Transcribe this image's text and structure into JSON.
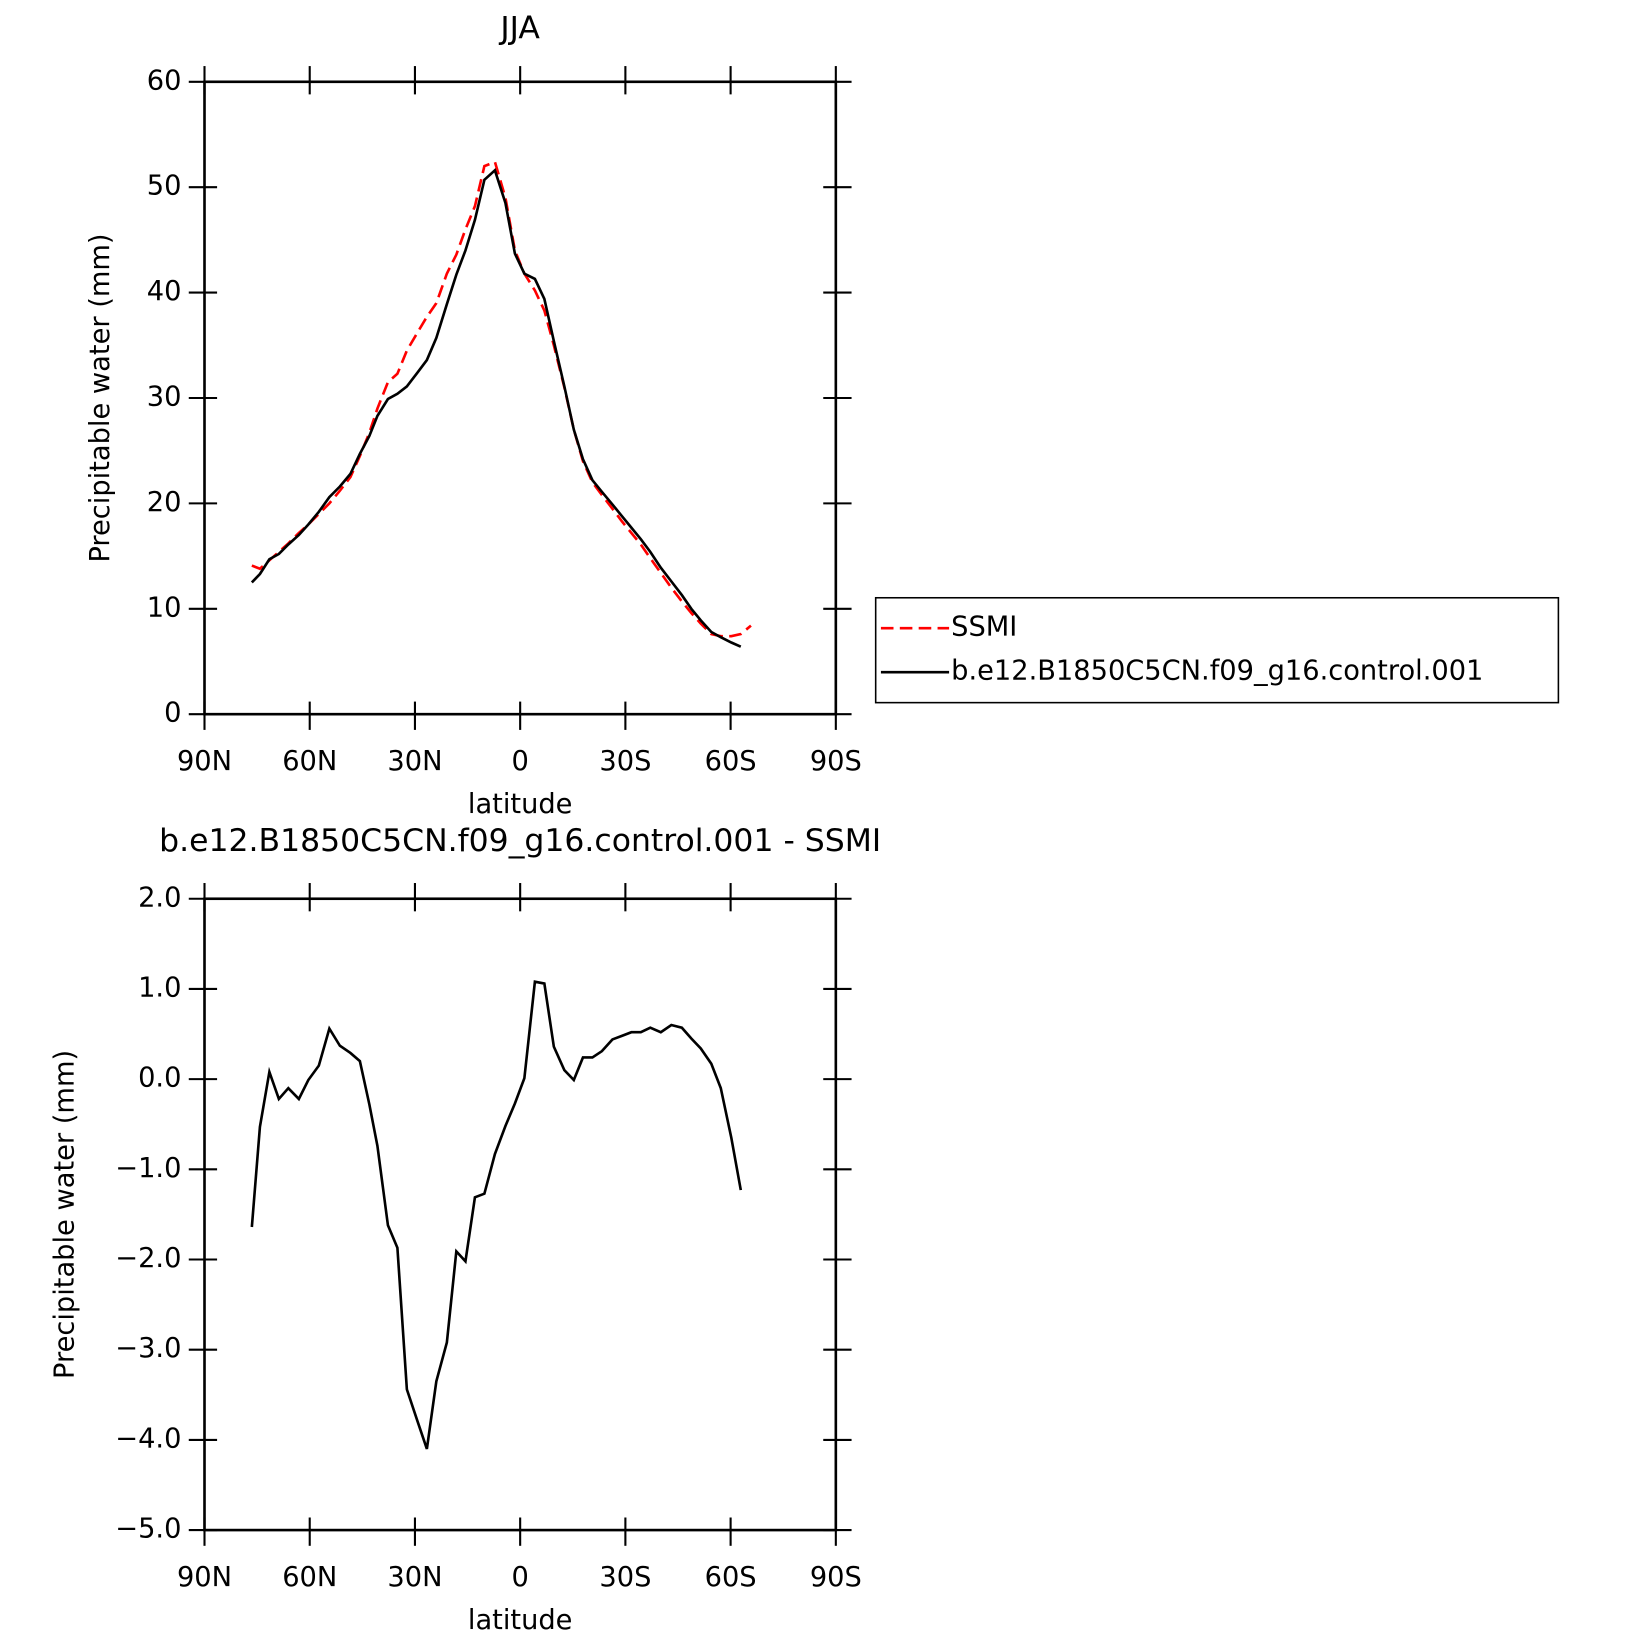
{
  "chart_data": [
    {
      "type": "line",
      "title": "JJA",
      "xlabel": "latitude",
      "ylabel": "Precipitable water (mm)",
      "x": [
        76.5,
        74.2,
        71.5,
        68.8,
        66.1,
        63.1,
        60.4,
        57.4,
        54.4,
        51.4,
        48.4,
        45.7,
        43.0,
        40.7,
        37.7,
        35.0,
        32.3,
        29.3,
        26.6,
        23.9,
        20.9,
        18.2,
        15.6,
        12.9,
        10.2,
        7.2,
        4.2,
        1.5,
        -1.2,
        -4.2,
        -6.9,
        -9.6,
        -12.6,
        -15.3,
        -17.9,
        -20.6,
        -23.3,
        -26.3,
        -29.0,
        -31.7,
        -34.4,
        -37.1,
        -40.1,
        -43.1,
        -46.1,
        -48.8,
        -51.5,
        -54.5,
        -57.2,
        -60.2,
        -62.9,
        -65.8
      ],
      "xlim": [
        90,
        -90
      ],
      "xticks": [
        {
          "value": 90,
          "label": "90N"
        },
        {
          "value": 60,
          "label": "60N"
        },
        {
          "value": 30,
          "label": "30N"
        },
        0,
        {
          "value": -30,
          "label": "30S"
        },
        {
          "value": -60,
          "label": "60S"
        },
        {
          "value": -90,
          "label": "90S"
        }
      ],
      "ylim": [
        0,
        60
      ],
      "yticks": [
        0,
        10,
        20,
        30,
        40,
        50,
        60
      ],
      "legend": "right",
      "series": [
        {
          "name": "SSMI",
          "color": "#ff0000",
          "dashed": true,
          "values": [
            14.1,
            13.8,
            14.6,
            15.4,
            16.2,
            17.2,
            18.0,
            19.0,
            20.0,
            21.2,
            22.5,
            24.5,
            26.7,
            29.0,
            31.5,
            32.3,
            34.5,
            36.2,
            37.7,
            39.0,
            41.8,
            43.6,
            46.0,
            48.2,
            52.0,
            52.4,
            49.0,
            44.0,
            41.8,
            40.2,
            38.3,
            35.0,
            31.0,
            27.0,
            24.0,
            22.0,
            20.8,
            19.5,
            18.3,
            17.2,
            16.1,
            14.8,
            13.4,
            12.0,
            10.7,
            9.6,
            8.6,
            7.6,
            7.4,
            7.4,
            7.6,
            8.4
          ]
        },
        {
          "name": "b.e12.B1850C5CN.f09_g16.control.001",
          "color": "#000000",
          "dashed": false,
          "values": [
            12.5,
            13.3,
            14.7,
            15.2,
            16.1,
            17.0,
            18.0,
            19.2,
            20.6,
            21.6,
            22.8,
            24.7,
            26.4,
            28.3,
            29.9,
            30.4,
            31.1,
            32.4,
            33.6,
            35.7,
            38.9,
            41.7,
            44.0,
            46.9,
            50.7,
            51.6,
            48.5,
            43.7,
            41.8,
            41.3,
            39.4,
            35.4,
            31.1,
            27.0,
            24.2,
            22.2,
            21.1,
            19.9,
            18.8,
            17.7,
            16.6,
            15.4,
            13.9,
            12.6,
            11.3,
            10.0,
            8.9,
            7.8,
            7.3,
            6.8,
            6.4,
            null
          ]
        }
      ]
    },
    {
      "type": "line",
      "title": "b.e12.B1850C5CN.f09_g16.control.001 - SSMI",
      "xlabel": "latitude",
      "ylabel": "Precipitable water (mm)",
      "x": [
        76.5,
        74.2,
        71.5,
        68.8,
        66.1,
        63.1,
        60.4,
        57.4,
        54.4,
        51.4,
        48.4,
        45.7,
        43.0,
        40.7,
        37.7,
        35.0,
        32.3,
        29.3,
        26.6,
        23.9,
        20.9,
        18.2,
        15.6,
        12.9,
        10.2,
        7.2,
        4.2,
        1.5,
        -1.2,
        -4.2,
        -6.9,
        -9.6,
        -12.6,
        -15.3,
        -17.9,
        -20.6,
        -23.3,
        -26.3,
        -29.0,
        -31.7,
        -34.4,
        -37.1,
        -40.1,
        -43.1,
        -46.1,
        -48.8,
        -51.5,
        -54.5,
        -57.2,
        -60.2,
        -62.9
      ],
      "xlim": [
        90,
        -90
      ],
      "xticks": [
        {
          "value": 90,
          "label": "90N"
        },
        {
          "value": 60,
          "label": "60N"
        },
        {
          "value": 30,
          "label": "30N"
        },
        0,
        {
          "value": -30,
          "label": "30S"
        },
        {
          "value": -60,
          "label": "60S"
        },
        {
          "value": -90,
          "label": "90S"
        }
      ],
      "ylim": [
        -5,
        2
      ],
      "yticks": [
        {
          "value": -5,
          "label": "−5.0"
        },
        {
          "value": -4,
          "label": "−4.0"
        },
        {
          "value": -3,
          "label": "−3.0"
        },
        {
          "value": -2,
          "label": "−2.0"
        },
        {
          "value": -1,
          "label": "−1.0"
        },
        {
          "value": 0,
          "label": "0.0"
        },
        {
          "value": 1,
          "label": "1.0"
        },
        {
          "value": 2,
          "label": "2.0"
        }
      ],
      "color": "#000000",
      "values": [
        -1.64,
        -0.53,
        0.08,
        -0.22,
        -0.1,
        -0.22,
        -0.01,
        0.15,
        0.56,
        0.37,
        0.29,
        0.2,
        -0.28,
        -0.74,
        -1.62,
        -1.87,
        -3.44,
        -3.79,
        -4.1,
        -3.35,
        -2.92,
        -1.91,
        -2.02,
        -1.31,
        -1.27,
        -0.83,
        -0.52,
        -0.27,
        0.01,
        1.08,
        1.06,
        0.36,
        0.1,
        -0.01,
        0.24,
        0.24,
        0.31,
        0.44,
        0.48,
        0.52,
        0.52,
        0.57,
        0.52,
        0.6,
        0.57,
        0.45,
        0.34,
        0.17,
        -0.1,
        -0.65,
        -1.23
      ]
    }
  ]
}
